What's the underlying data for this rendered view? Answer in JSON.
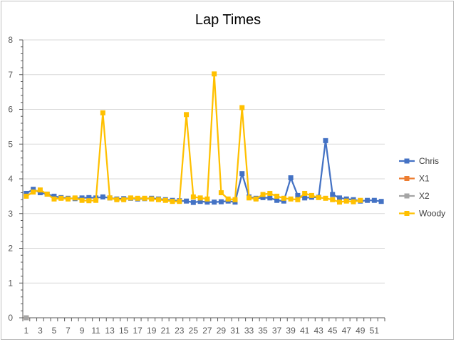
{
  "chart_data": {
    "type": "line",
    "title": "Lap Times",
    "xlabel": "",
    "ylabel": "",
    "ylim": [
      0,
      8
    ],
    "yticks": [
      0,
      1,
      2,
      3,
      4,
      5,
      6,
      7,
      8
    ],
    "xticks": [
      1,
      3,
      5,
      7,
      9,
      11,
      13,
      15,
      17,
      19,
      21,
      23,
      25,
      27,
      29,
      31,
      33,
      35,
      37,
      39,
      41,
      43,
      45,
      47,
      49,
      51
    ],
    "xrange": [
      1,
      52
    ],
    "grid": "horizontal",
    "legend_position": "right",
    "colors": {
      "Chris": "#4472c4",
      "X1": "#ed7d31",
      "X2": "#a5a5a5",
      "Woody": "#ffc000",
      "grid": "#d9d9d9",
      "axis": "#595959"
    },
    "series": [
      {
        "name": "Chris",
        "x": [
          1,
          2,
          3,
          4,
          5,
          6,
          7,
          8,
          9,
          10,
          11,
          12,
          13,
          14,
          15,
          16,
          17,
          18,
          19,
          20,
          21,
          22,
          23,
          24,
          25,
          26,
          27,
          28,
          29,
          30,
          31,
          32,
          33,
          34,
          35,
          36,
          37,
          38,
          39,
          40,
          41,
          42,
          43,
          44,
          45,
          46,
          47,
          48,
          49,
          50,
          51,
          52
        ],
        "values": [
          3.58,
          3.7,
          3.6,
          3.56,
          3.5,
          3.46,
          3.44,
          3.43,
          3.45,
          3.46,
          3.45,
          3.48,
          3.45,
          3.42,
          3.43,
          3.44,
          3.42,
          3.43,
          3.44,
          3.42,
          3.4,
          3.38,
          3.37,
          3.36,
          3.32,
          3.35,
          3.33,
          3.33,
          3.34,
          3.36,
          3.33,
          4.15,
          3.48,
          3.44,
          3.46,
          3.45,
          3.38,
          3.36,
          4.03,
          3.52,
          3.45,
          3.47,
          3.47,
          5.1,
          3.55,
          3.45,
          3.42,
          3.4,
          3.36,
          3.38,
          3.38,
          3.35
        ]
      },
      {
        "name": "X1",
        "x": [
          1
        ],
        "values": [
          0
        ]
      },
      {
        "name": "X2",
        "x": [
          1
        ],
        "values": [
          0
        ]
      },
      {
        "name": "Woody",
        "x": [
          1,
          2,
          3,
          4,
          5,
          6,
          7,
          8,
          9,
          10,
          11,
          12,
          13,
          14,
          15,
          16,
          17,
          18,
          19,
          20,
          21,
          22,
          23,
          24,
          25,
          26,
          27,
          28,
          29,
          30,
          31,
          32,
          33,
          34,
          35,
          36,
          37,
          38,
          39,
          40,
          41,
          42,
          43,
          44,
          45,
          46,
          47,
          48,
          49
        ],
        "values": [
          3.5,
          3.62,
          3.68,
          3.56,
          3.42,
          3.44,
          3.42,
          3.45,
          3.38,
          3.37,
          3.38,
          5.9,
          3.45,
          3.4,
          3.4,
          3.45,
          3.44,
          3.44,
          3.42,
          3.4,
          3.38,
          3.35,
          3.35,
          5.85,
          3.48,
          3.45,
          3.42,
          7.02,
          3.6,
          3.42,
          3.4,
          6.05,
          3.45,
          3.42,
          3.55,
          3.58,
          3.5,
          3.44,
          3.42,
          3.4,
          3.58,
          3.52,
          3.46,
          3.44,
          3.4,
          3.33,
          3.36,
          3.34,
          3.38
        ]
      }
    ]
  }
}
